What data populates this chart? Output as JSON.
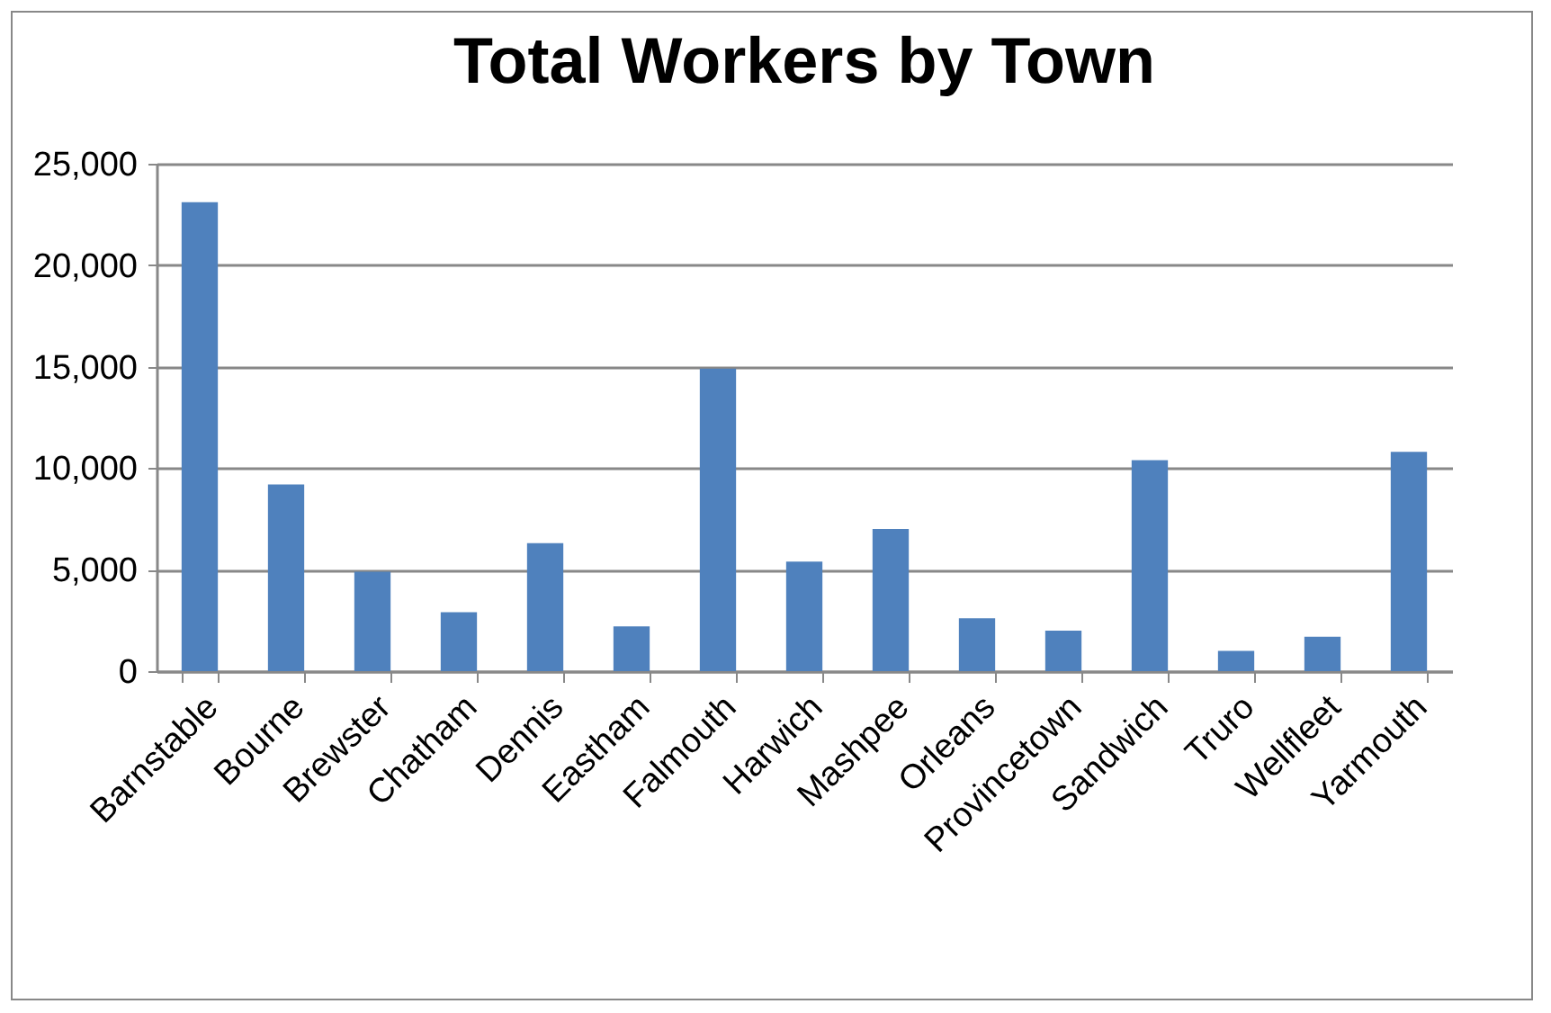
{
  "chart_data": {
    "type": "bar",
    "title": "Total Workers by Town",
    "categories": [
      "Barnstable",
      "Bourne",
      "Brewster",
      "Chatham",
      "Dennis",
      "Eastham",
      "Falmouth",
      "Harwich",
      "Mashpee",
      "Orleans",
      "Provincetown",
      "Sandwich",
      "Truro",
      "Wellfleet",
      "Yarmouth"
    ],
    "values": [
      23100,
      9200,
      4900,
      2900,
      6300,
      2200,
      14900,
      5400,
      7000,
      2600,
      2000,
      10400,
      1000,
      1700,
      10800
    ],
    "color": "#4f81bd",
    "ylim": [
      0,
      25000
    ],
    "yticks": [
      {
        "value": 0,
        "label": "0"
      },
      {
        "value": 5000,
        "label": "5,000"
      },
      {
        "value": 10000,
        "label": "10,000"
      },
      {
        "value": 15000,
        "label": "15,000"
      },
      {
        "value": 20000,
        "label": "20,000"
      },
      {
        "value": 25000,
        "label": "25,000"
      }
    ],
    "grid": "y"
  }
}
